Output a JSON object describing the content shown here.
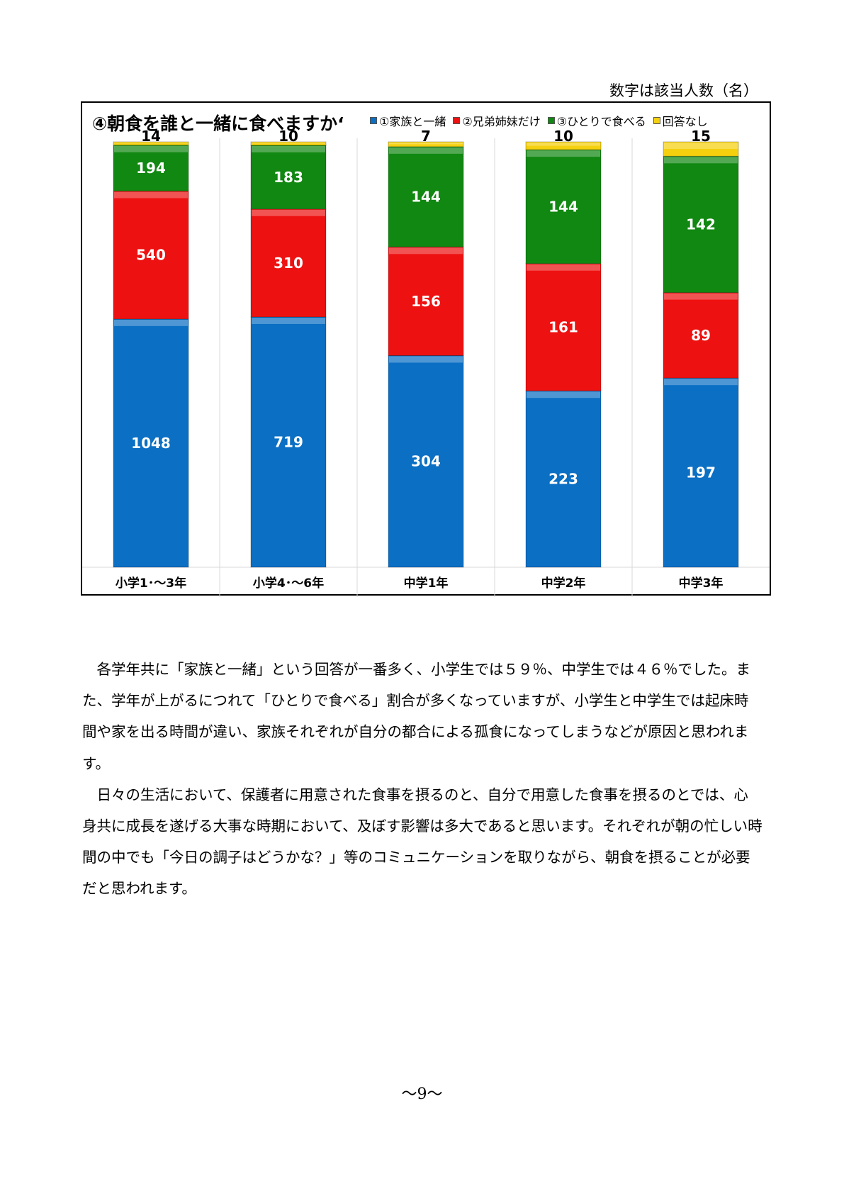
{
  "note": "数字は該当人数（名）",
  "chart_data": {
    "type": "bar",
    "stacked": true,
    "title": "④朝食を誰と一緒に食べますか‘",
    "categories": [
      "小学1･～3年",
      "小学4･～6年",
      "中学1年",
      "中学2年",
      "中学3年"
    ],
    "series": [
      {
        "name": "①家族と一緒",
        "color": "#0b6fc4",
        "values": [
          1048,
          719,
          304,
          223,
          197
        ]
      },
      {
        "name": "②兄弟姉妹だけ",
        "color": "#ee1111",
        "values": [
          540,
          310,
          156,
          161,
          89
        ]
      },
      {
        "name": "③ひとりで食べる",
        "color": "#118811",
        "values": [
          194,
          183,
          144,
          144,
          142
        ]
      },
      {
        "name": "回答なし",
        "color": "#f5d00f",
        "values": [
          14,
          10,
          7,
          10,
          15
        ]
      }
    ],
    "normalized": true,
    "ylim": [
      0,
      100
    ],
    "legend": "top-right"
  },
  "body": {
    "paragraphs": [
      "各学年共に「家族と一緒」という回答が一番多く、小学生では５９％、中学生では４６％でした。また、学年が上がるにつれて「ひとりで食べる」割合が多くなっていますが、小学生と中学生では起床時間や家を出る時間が違い、家族それぞれが自分の都合による孤食になってしまうなどが原因と思われます。",
      "日々の生活において、保護者に用意された食事を摂るのと、自分で用意した食事を摂るのとでは、心身共に成長を遂げる大事な時期において、及ぼす影響は多大であると思います。それぞれが朝の忙しい時間の中でも「今日の調子はどうかな？」等のコミュニケーションを取りながら、朝食を摂ることが必要だと思われます。"
    ]
  },
  "page_number": "～9～"
}
